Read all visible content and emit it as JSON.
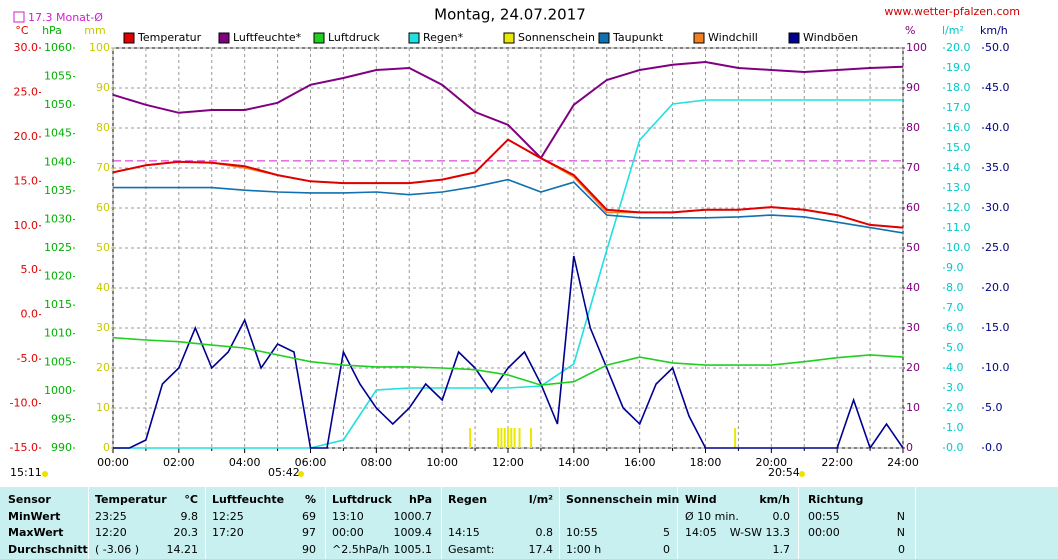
{
  "chart_data": {
    "type": "line",
    "title": "Montag, 24.07.2017",
    "site": "www.wetter-pfalzen.com",
    "monthly_mean": {
      "label": "17.3 Monat-Ø",
      "value": 17.3,
      "axis": 0,
      "color": "#d020d0"
    },
    "x": [
      0,
      1,
      2,
      3,
      4,
      5,
      6,
      7,
      8,
      9,
      10,
      11,
      12,
      13,
      14,
      15,
      16,
      17,
      18,
      19,
      20,
      21,
      22,
      23,
      24
    ],
    "xlim": [
      0,
      24
    ],
    "xticks": [
      {
        "value": 0,
        "label": "00:00"
      },
      1,
      {
        "value": 2,
        "label": "02:00"
      },
      3,
      {
        "value": 4,
        "label": "04:00"
      },
      5,
      {
        "value": 6,
        "label": "06:00"
      },
      7,
      {
        "value": 8,
        "label": "08:00"
      },
      9,
      {
        "value": 10,
        "label": "10:00"
      },
      11,
      {
        "value": 12,
        "label": "12:00"
      },
      13,
      {
        "value": 14,
        "label": "14:00"
      },
      15,
      {
        "value": 16,
        "label": "16:00"
      },
      17,
      {
        "value": 18,
        "label": "18:00"
      },
      19,
      {
        "value": 20,
        "label": "20:00"
      },
      21,
      {
        "value": 22,
        "label": "22:00"
      },
      23,
      {
        "value": 24,
        "label": "24:00"
      }
    ],
    "grid": true,
    "grid_axis": 2,
    "y_axes": [
      {
        "name": "°C",
        "side": "left",
        "color": "#e00000",
        "lim": [
          -15,
          30
        ],
        "ticks": [
          {
            "value": 30,
            "label": "30.0"
          },
          {
            "value": 25,
            "label": "25.0"
          },
          {
            "value": 20,
            "label": "20.0"
          },
          {
            "value": 15,
            "label": "15.0"
          },
          {
            "value": 10,
            "label": "10.0"
          },
          {
            "value": 5,
            "label": "5.0"
          },
          {
            "value": 0,
            "label": "0.0"
          },
          {
            "value": -5,
            "label": "-5.0"
          },
          {
            "value": -10,
            "label": "-10.0"
          },
          {
            "value": -15,
            "label": "-15.0"
          }
        ]
      },
      {
        "name": "hPa",
        "side": "left",
        "color": "#00b000",
        "lim": [
          990,
          1060
        ],
        "ticks": [
          1060,
          1055,
          1050,
          1045,
          1040,
          1035,
          1030,
          1025,
          1020,
          1015,
          1010,
          1005,
          1000,
          995,
          990
        ]
      },
      {
        "name": "mm",
        "side": "left",
        "color": "#c8c800",
        "lim": [
          0,
          100
        ],
        "ticks": [
          100,
          90,
          80,
          70,
          60,
          50,
          40,
          30,
          20,
          10,
          0
        ]
      },
      {
        "name": "%",
        "side": "right",
        "color": "#800080",
        "lim": [
          0,
          100
        ],
        "ticks": [
          100,
          90,
          80,
          70,
          60,
          50,
          40,
          30,
          20,
          10,
          0
        ]
      },
      {
        "name": "l/m²",
        "side": "right",
        "color": "#00c8c8",
        "lim": [
          0,
          20
        ],
        "ticks": [
          {
            "value": 20,
            "label": "20.0"
          },
          {
            "value": 19,
            "label": "19.0"
          },
          {
            "value": 18,
            "label": "18.0"
          },
          {
            "value": 17,
            "label": "17.0"
          },
          {
            "value": 16,
            "label": "16.0"
          },
          {
            "value": 15,
            "label": "15.0"
          },
          {
            "value": 14,
            "label": "14.0"
          },
          {
            "value": 13,
            "label": "13.0"
          },
          {
            "value": 12,
            "label": "12.0"
          },
          {
            "value": 11,
            "label": "11.0"
          },
          {
            "value": 10,
            "label": "10.0"
          },
          {
            "value": 9,
            "label": "9.0"
          },
          {
            "value": 8,
            "label": "8.0"
          },
          {
            "value": 7,
            "label": "7.0"
          },
          {
            "value": 6,
            "label": "6.0"
          },
          {
            "value": 5,
            "label": "5.0"
          },
          {
            "value": 4,
            "label": "4.0"
          },
          {
            "value": 3,
            "label": "3.0"
          },
          {
            "value": 2,
            "label": "2.0"
          },
          {
            "value": 1,
            "label": "1.0"
          },
          {
            "value": 0,
            "label": "0.0"
          }
        ]
      },
      {
        "name": "km/h",
        "side": "right",
        "color": "#000080",
        "lim": [
          0,
          50
        ],
        "ticks": [
          {
            "value": 50,
            "label": "50.0"
          },
          {
            "value": 45,
            "label": "45.0"
          },
          {
            "value": 40,
            "label": "40.0"
          },
          {
            "value": 35,
            "label": "35.0"
          },
          {
            "value": 30,
            "label": "30.0"
          },
          {
            "value": 25,
            "label": "25.0"
          },
          {
            "value": 20,
            "label": "20.0"
          },
          {
            "value": 15,
            "label": "15.0"
          },
          {
            "value": 10,
            "label": "10.0"
          },
          {
            "value": 5,
            "label": "5.0"
          },
          {
            "value": 0,
            "label": "0.0"
          }
        ]
      }
    ],
    "series": [
      {
        "name": "Temperatur",
        "color": "#e00000",
        "axis": 0,
        "values": [
          16.0,
          16.8,
          17.2,
          17.1,
          16.7,
          15.7,
          15.0,
          14.8,
          14.8,
          14.8,
          15.2,
          16.0,
          19.7,
          17.6,
          15.7,
          11.8,
          11.5,
          11.5,
          11.8,
          11.8,
          12.1,
          11.8,
          11.2,
          10.1,
          9.8
        ]
      },
      {
        "name": "Luftfeuchte*",
        "color": "#800080",
        "axis": 3,
        "values": [
          88.3,
          85.8,
          83.8,
          84.5,
          84.5,
          86.3,
          90.8,
          92.5,
          94.5,
          95,
          90.8,
          84,
          80.8,
          72.5,
          85.8,
          92,
          94.5,
          95.8,
          96.5,
          95,
          94.5,
          94,
          94.5,
          95,
          95.3
        ]
      },
      {
        "name": "Luftdruck",
        "color": "#20d020",
        "axis": 1,
        "values": [
          1009.3,
          1008.9,
          1008.6,
          1008.0,
          1007.5,
          1006.3,
          1005.1,
          1004.5,
          1004.2,
          1004.2,
          1004.0,
          1003.7,
          1002.8,
          1001.0,
          1001.6,
          1004.5,
          1005.9,
          1004.9,
          1004.5,
          1004.5,
          1004.5,
          1005.1,
          1005.8,
          1006.3,
          1005.9
        ]
      },
      {
        "name": "Regen*",
        "color": "#20e0e0",
        "axis": 4,
        "values": [
          0,
          0,
          0,
          0,
          0,
          0,
          0,
          0.4,
          2.9,
          3.0,
          3.0,
          3.0,
          3.0,
          3.1,
          4.2,
          9.9,
          15.4,
          17.2,
          17.4,
          17.4,
          17.4,
          17.4,
          17.4,
          17.4,
          17.4
        ]
      },
      {
        "name": "Sonnenschein",
        "color": "#e8e800",
        "axis": 2,
        "kind": "bar",
        "x": [
          10.85,
          11.7,
          11.8,
          11.9,
          12.0,
          12.1,
          12.2,
          12.35,
          12.7,
          18.9
        ],
        "values": [
          5,
          5,
          5,
          5,
          5,
          5,
          5,
          5,
          5,
          5
        ]
      },
      {
        "name": "Taupunkt",
        "color": "#1070b0",
        "axis": 0,
        "values": [
          14.3,
          14.3,
          14.3,
          14.3,
          14.0,
          13.8,
          13.7,
          13.7,
          13.8,
          13.5,
          13.8,
          14.4,
          15.2,
          13.8,
          14.9,
          11.2,
          10.9,
          10.9,
          10.9,
          11.0,
          11.2,
          11.0,
          10.4,
          9.8,
          9.2
        ]
      },
      {
        "name": "Windchill",
        "color": "#f08020",
        "axis": 0,
        "values": [
          16.0,
          16.8,
          17.2,
          17.1,
          16.5,
          15.7,
          15.0,
          14.8,
          14.8,
          14.8,
          15.2,
          16.0,
          19.7,
          17.6,
          15.5,
          11.5,
          11.5,
          11.5,
          11.8,
          11.8,
          12.1,
          11.8,
          11.2,
          10.1,
          9.8
        ]
      },
      {
        "name": "Windböen",
        "color": "#000090",
        "axis": 5,
        "x": [
          0,
          0.5,
          1,
          1.5,
          2,
          2.5,
          3,
          3.5,
          4,
          4.5,
          5,
          5.5,
          6,
          6.5,
          7,
          7.5,
          8,
          8.5,
          9,
          9.5,
          10,
          10.5,
          11,
          11.5,
          12,
          12.5,
          13,
          13.5,
          14,
          14.5,
          15,
          15.5,
          16,
          16.5,
          17,
          17.5,
          18,
          18.5,
          19,
          19.5,
          20,
          20.5,
          21,
          21.5,
          22,
          22.5,
          23,
          23.5,
          24
        ],
        "values": [
          0,
          0,
          1,
          8,
          10,
          15,
          10,
          12,
          16,
          10,
          13,
          12,
          0,
          0,
          12,
          8,
          5,
          3,
          5,
          8,
          6,
          12,
          10,
          7,
          10,
          12,
          8,
          3,
          24,
          15,
          10,
          5,
          3,
          8,
          10,
          4,
          0,
          0,
          0,
          0,
          0,
          0,
          0,
          0,
          0,
          6,
          0,
          3,
          0
        ]
      }
    ],
    "sun": {
      "day_length": "15:11",
      "sunrise": "05:42",
      "sunset": "20:54"
    }
  },
  "table": {
    "rows": [
      [
        "Sensor",
        "Temperatur",
        "°C",
        "Luftfeuchte",
        "%",
        "Luftdruck",
        "hPa",
        "Regen",
        "l/m²",
        "Sonnenschein min",
        null,
        "Wind",
        "km/h",
        "Richtung",
        null
      ],
      [
        "MinWert",
        "23:25",
        "9.8",
        "12:25",
        "69",
        "13:10",
        "1000.7",
        null,
        null,
        null,
        null,
        "Ø 10 min.",
        "0.0",
        "00:55",
        "N"
      ],
      [
        "MaxWert",
        "12:20",
        "20.3",
        "17:20",
        "97",
        "00:00",
        "1009.4",
        "14:15",
        "0.8",
        "10:55",
        "5",
        "14:05",
        "W-SW 13.3",
        "00:00",
        "N"
      ],
      [
        "Durchschnitt",
        "( -3.06 )",
        "14.21",
        null,
        "90",
        "^2.5hPa/h",
        "1005.1",
        "Gesamt:",
        "17.4",
        "1:00 h",
        "0",
        null,
        "1.7",
        null,
        "0"
      ]
    ]
  }
}
